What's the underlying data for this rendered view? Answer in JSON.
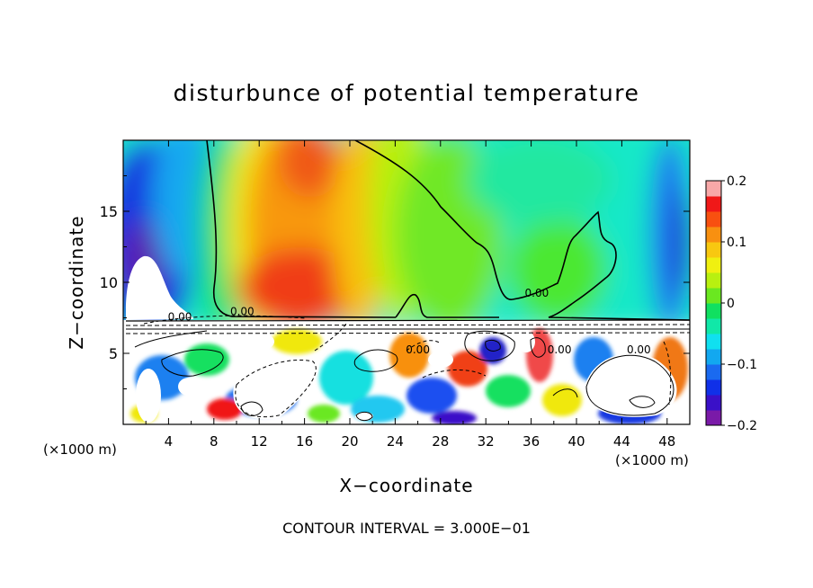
{
  "chart_data": {
    "type": "heatmap",
    "title": "disturbunce of potential temperature",
    "xlabel": "X−coordinate",
    "ylabel": "Z−coordinate",
    "x_unit_left": "(×1000 m)",
    "x_unit_right": "(×1000 m)",
    "footer": "CONTOUR INTERVAL = 3.000E−01",
    "xlim": [
      0,
      50
    ],
    "ylim": [
      0,
      20
    ],
    "x_ticks": [
      4,
      8,
      12,
      16,
      20,
      24,
      28,
      32,
      36,
      40,
      44,
      48
    ],
    "y_ticks": [
      5,
      10,
      15
    ],
    "colorbar": {
      "min": -0.2,
      "max": 0.2,
      "ticks": [
        0.2,
        0.1,
        0,
        -0.1,
        -0.2
      ],
      "tick_labels": [
        "0.2",
        "0.1",
        "0",
        "−0.1",
        "−0.2"
      ],
      "colors": [
        "#7a1aa8",
        "#3a10c8",
        "#1030e8",
        "#1a6af0",
        "#12a8f0",
        "#10e0f0",
        "#10e8a8",
        "#10e060",
        "#6ae820",
        "#b8f010",
        "#f0f010",
        "#f8c810",
        "#f89010",
        "#f85010",
        "#f01818",
        "#f8a8a8"
      ]
    },
    "contour_labels": [
      {
        "text": "0.00",
        "x": 5.0,
        "z": 7.3
      },
      {
        "text": "0.00",
        "x": 10.5,
        "z": 7.7
      },
      {
        "text": "0.00",
        "x": 36.5,
        "z": 9.0
      },
      {
        "text": "0.00",
        "x": 26.0,
        "z": 5.0
      },
      {
        "text": "0.00",
        "x": 38.5,
        "z": 5.0
      },
      {
        "text": "0.00",
        "x": 45.5,
        "z": 5.0
      }
    ]
  }
}
